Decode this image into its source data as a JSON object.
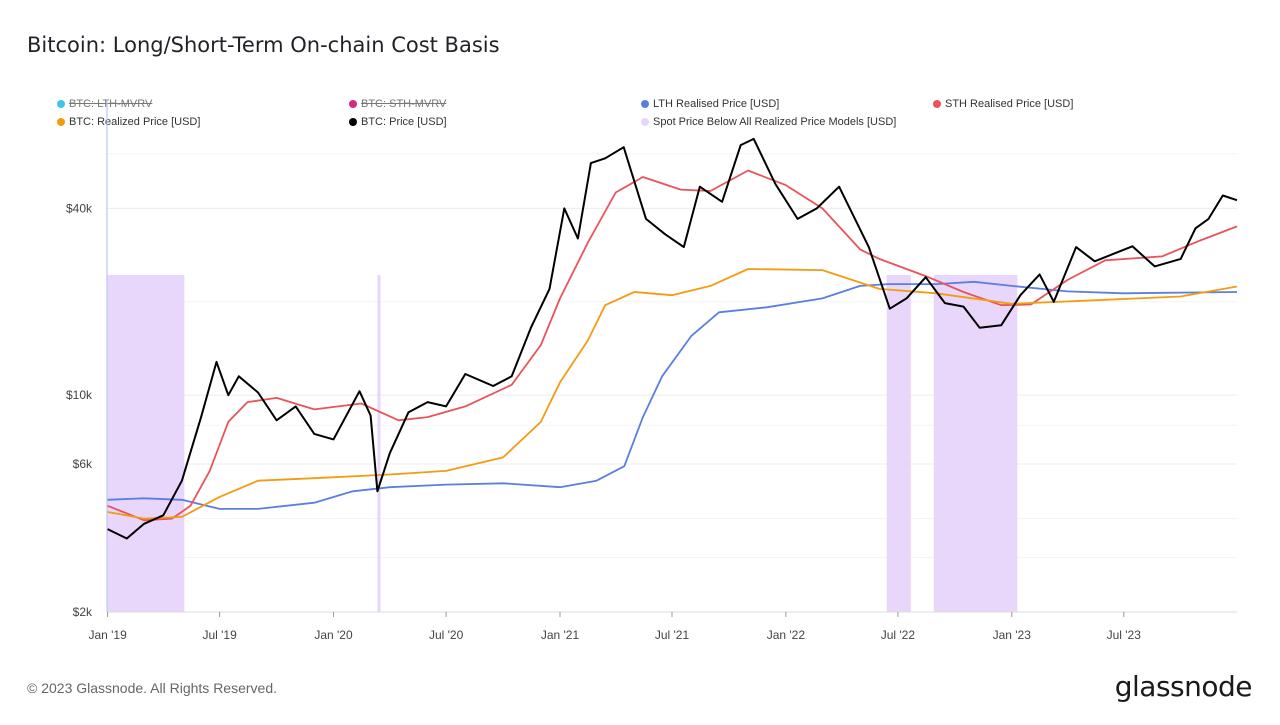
{
  "header": {
    "title": "Bitcoin: Long/Short-Term On-chain Cost Basis"
  },
  "footer": {
    "copyright": "© 2023 Glassnode. All Rights Reserved.",
    "brand": "glassnode"
  },
  "legend": [
    {
      "label": "BTC: LTH-MVRV",
      "color": "#3ec6e8",
      "enabled": false
    },
    {
      "label": "BTC: STH-MVRV",
      "color": "#d6287d",
      "enabled": false
    },
    {
      "label": "LTH Realised Price [USD]",
      "color": "#5b7fe0",
      "enabled": true
    },
    {
      "label": "STH Realised Price [USD]",
      "color": "#e8545a",
      "enabled": true
    },
    {
      "label": "BTC: Realized Price [USD]",
      "color": "#f39c12",
      "enabled": true
    },
    {
      "label": "BTC: Price [USD]",
      "color": "#000000",
      "enabled": true
    },
    {
      "label": "Spot Price Below All Realized Price Models [USD]",
      "color": "#e7d5fb",
      "enabled": true
    }
  ],
  "chart_data": {
    "type": "line",
    "title": "Bitcoin: Long/Short-Term On-chain Cost Basis",
    "y_scale": "log",
    "ylim": [
      2000,
      80000
    ],
    "y_ticks": [
      {
        "value": 2000,
        "label": "$2k"
      },
      {
        "value": 6000,
        "label": "$6k"
      },
      {
        "value": 10000,
        "label": "$10k"
      },
      {
        "value": 40000,
        "label": "$40k"
      }
    ],
    "x_range": [
      "2018-12-31",
      "2023-12-31"
    ],
    "x_ticks": [
      {
        "date": "2019-01-01",
        "label": "Jan '19"
      },
      {
        "date": "2019-07-01",
        "label": "Jul '19"
      },
      {
        "date": "2020-01-01",
        "label": "Jan '20"
      },
      {
        "date": "2020-07-01",
        "label": "Jul '20"
      },
      {
        "date": "2021-01-01",
        "label": "Jan '21"
      },
      {
        "date": "2021-07-01",
        "label": "Jul '21"
      },
      {
        "date": "2022-01-01",
        "label": "Jan '22"
      },
      {
        "date": "2022-07-01",
        "label": "Jul '22"
      },
      {
        "date": "2023-01-01",
        "label": "Jan '23"
      },
      {
        "date": "2023-07-01",
        "label": "Jul '23"
      }
    ],
    "grid": true,
    "legend_position": "top",
    "series": [
      {
        "name": "LTH Realised Price [USD]",
        "color": "#5b7fe0",
        "points": [
          [
            "2019-01-01",
            4600
          ],
          [
            "2019-03-01",
            4650
          ],
          [
            "2019-05-01",
            4600
          ],
          [
            "2019-07-01",
            4300
          ],
          [
            "2019-09-01",
            4300
          ],
          [
            "2019-12-01",
            4500
          ],
          [
            "2020-02-01",
            4900
          ],
          [
            "2020-04-01",
            5050
          ],
          [
            "2020-07-01",
            5150
          ],
          [
            "2020-10-01",
            5200
          ],
          [
            "2021-01-01",
            5050
          ],
          [
            "2021-03-01",
            5300
          ],
          [
            "2021-04-15",
            5900
          ],
          [
            "2021-05-15",
            8500
          ],
          [
            "2021-06-15",
            11500
          ],
          [
            "2021-08-01",
            15500
          ],
          [
            "2021-09-15",
            18500
          ],
          [
            "2021-12-01",
            19200
          ],
          [
            "2022-03-01",
            20500
          ],
          [
            "2022-05-01",
            22500
          ],
          [
            "2022-06-15",
            22800
          ],
          [
            "2022-09-01",
            22800
          ],
          [
            "2022-11-01",
            23200
          ],
          [
            "2023-01-01",
            22500
          ],
          [
            "2023-04-01",
            21600
          ],
          [
            "2023-07-01",
            21300
          ],
          [
            "2023-12-31",
            21500
          ]
        ]
      },
      {
        "name": "STH Realised Price [USD]",
        "color": "#e8545a",
        "points": [
          [
            "2019-01-01",
            4400
          ],
          [
            "2019-03-01",
            3950
          ],
          [
            "2019-04-15",
            4000
          ],
          [
            "2019-05-15",
            4400
          ],
          [
            "2019-06-15",
            5700
          ],
          [
            "2019-07-15",
            8200
          ],
          [
            "2019-08-15",
            9500
          ],
          [
            "2019-10-01",
            9800
          ],
          [
            "2019-12-01",
            9000
          ],
          [
            "2020-02-15",
            9400
          ],
          [
            "2020-04-15",
            8300
          ],
          [
            "2020-06-01",
            8500
          ],
          [
            "2020-08-01",
            9200
          ],
          [
            "2020-10-15",
            10800
          ],
          [
            "2020-12-01",
            14500
          ],
          [
            "2021-01-01",
            20500
          ],
          [
            "2021-02-15",
            31000
          ],
          [
            "2021-04-01",
            45000
          ],
          [
            "2021-05-15",
            50500
          ],
          [
            "2021-07-15",
            46000
          ],
          [
            "2021-09-01",
            45500
          ],
          [
            "2021-11-01",
            53000
          ],
          [
            "2022-01-01",
            47500
          ],
          [
            "2022-03-01",
            40000
          ],
          [
            "2022-05-01",
            29500
          ],
          [
            "2022-06-01",
            27500
          ],
          [
            "2022-08-15",
            24200
          ],
          [
            "2022-10-15",
            21500
          ],
          [
            "2022-12-15",
            19500
          ],
          [
            "2023-02-01",
            19600
          ],
          [
            "2023-04-01",
            23500
          ],
          [
            "2023-06-01",
            27200
          ],
          [
            "2023-09-01",
            28000
          ],
          [
            "2023-11-01",
            31500
          ],
          [
            "2023-12-31",
            35000
          ]
        ]
      },
      {
        "name": "BTC: Realized Price [USD]",
        "color": "#f39c12",
        "points": [
          [
            "2019-01-01",
            4200
          ],
          [
            "2019-03-01",
            4000
          ],
          [
            "2019-05-01",
            4050
          ],
          [
            "2019-07-01",
            4700
          ],
          [
            "2019-09-01",
            5300
          ],
          [
            "2019-12-01",
            5400
          ],
          [
            "2020-04-01",
            5550
          ],
          [
            "2020-07-01",
            5700
          ],
          [
            "2020-10-01",
            6300
          ],
          [
            "2020-12-01",
            8200
          ],
          [
            "2021-01-01",
            11000
          ],
          [
            "2021-02-15",
            15000
          ],
          [
            "2021-03-15",
            19500
          ],
          [
            "2021-05-01",
            21500
          ],
          [
            "2021-07-01",
            21000
          ],
          [
            "2021-09-01",
            22500
          ],
          [
            "2021-11-01",
            25500
          ],
          [
            "2022-03-01",
            25300
          ],
          [
            "2022-06-01",
            22000
          ],
          [
            "2022-09-01",
            21300
          ],
          [
            "2023-01-01",
            19700
          ],
          [
            "2023-06-01",
            20300
          ],
          [
            "2023-10-01",
            20800
          ],
          [
            "2023-12-31",
            22400
          ]
        ]
      },
      {
        "name": "BTC: Price [USD]",
        "color": "#000000",
        "points": [
          [
            "2019-01-01",
            3700
          ],
          [
            "2019-02-01",
            3450
          ],
          [
            "2019-03-01",
            3850
          ],
          [
            "2019-04-01",
            4100
          ],
          [
            "2019-05-01",
            5300
          ],
          [
            "2019-06-01",
            8500
          ],
          [
            "2019-06-26",
            12800
          ],
          [
            "2019-07-15",
            10000
          ],
          [
            "2019-08-01",
            11500
          ],
          [
            "2019-09-01",
            10200
          ],
          [
            "2019-10-01",
            8300
          ],
          [
            "2019-11-01",
            9200
          ],
          [
            "2019-12-01",
            7500
          ],
          [
            "2020-01-01",
            7200
          ],
          [
            "2020-02-12",
            10300
          ],
          [
            "2020-03-01",
            8600
          ],
          [
            "2020-03-12",
            4900
          ],
          [
            "2020-04-01",
            6500
          ],
          [
            "2020-05-01",
            8800
          ],
          [
            "2020-06-01",
            9500
          ],
          [
            "2020-07-01",
            9200
          ],
          [
            "2020-08-01",
            11700
          ],
          [
            "2020-09-15",
            10700
          ],
          [
            "2020-10-15",
            11500
          ],
          [
            "2020-11-15",
            16500
          ],
          [
            "2020-12-15",
            22000
          ],
          [
            "2021-01-08",
            40000
          ],
          [
            "2021-01-30",
            32000
          ],
          [
            "2021-02-20",
            56000
          ],
          [
            "2021-03-15",
            58000
          ],
          [
            "2021-04-14",
            63000
          ],
          [
            "2021-05-20",
            37000
          ],
          [
            "2021-06-20",
            33000
          ],
          [
            "2021-07-20",
            30000
          ],
          [
            "2021-08-15",
            47000
          ],
          [
            "2021-09-20",
            42000
          ],
          [
            "2021-10-20",
            64000
          ],
          [
            "2021-11-10",
            67000
          ],
          [
            "2021-12-15",
            48000
          ],
          [
            "2022-01-20",
            37000
          ],
          [
            "2022-02-20",
            40000
          ],
          [
            "2022-03-28",
            47000
          ],
          [
            "2022-05-15",
            30000
          ],
          [
            "2022-06-18",
            19000
          ],
          [
            "2022-07-15",
            20500
          ],
          [
            "2022-08-15",
            24000
          ],
          [
            "2022-09-15",
            19800
          ],
          [
            "2022-10-15",
            19300
          ],
          [
            "2022-11-10",
            16500
          ],
          [
            "2022-12-15",
            16800
          ],
          [
            "2023-01-15",
            21000
          ],
          [
            "2023-02-15",
            24500
          ],
          [
            "2023-03-10",
            20000
          ],
          [
            "2023-04-15",
            30000
          ],
          [
            "2023-05-15",
            27000
          ],
          [
            "2023-07-15",
            30200
          ],
          [
            "2023-08-20",
            26000
          ],
          [
            "2023-10-01",
            27500
          ],
          [
            "2023-10-25",
            34500
          ],
          [
            "2023-11-15",
            37000
          ],
          [
            "2023-12-08",
            44000
          ],
          [
            "2023-12-31",
            42500
          ]
        ]
      }
    ],
    "shaded_regions": {
      "name": "Spot Price Below All Realized Price Models [USD]",
      "color": "#e7d5fb",
      "ranges": [
        [
          "2018-12-31",
          "2019-05-05"
        ],
        [
          "2020-03-12",
          "2020-03-17"
        ],
        [
          "2022-06-13",
          "2022-07-22"
        ],
        [
          "2022-08-28",
          "2023-01-10"
        ]
      ]
    }
  }
}
